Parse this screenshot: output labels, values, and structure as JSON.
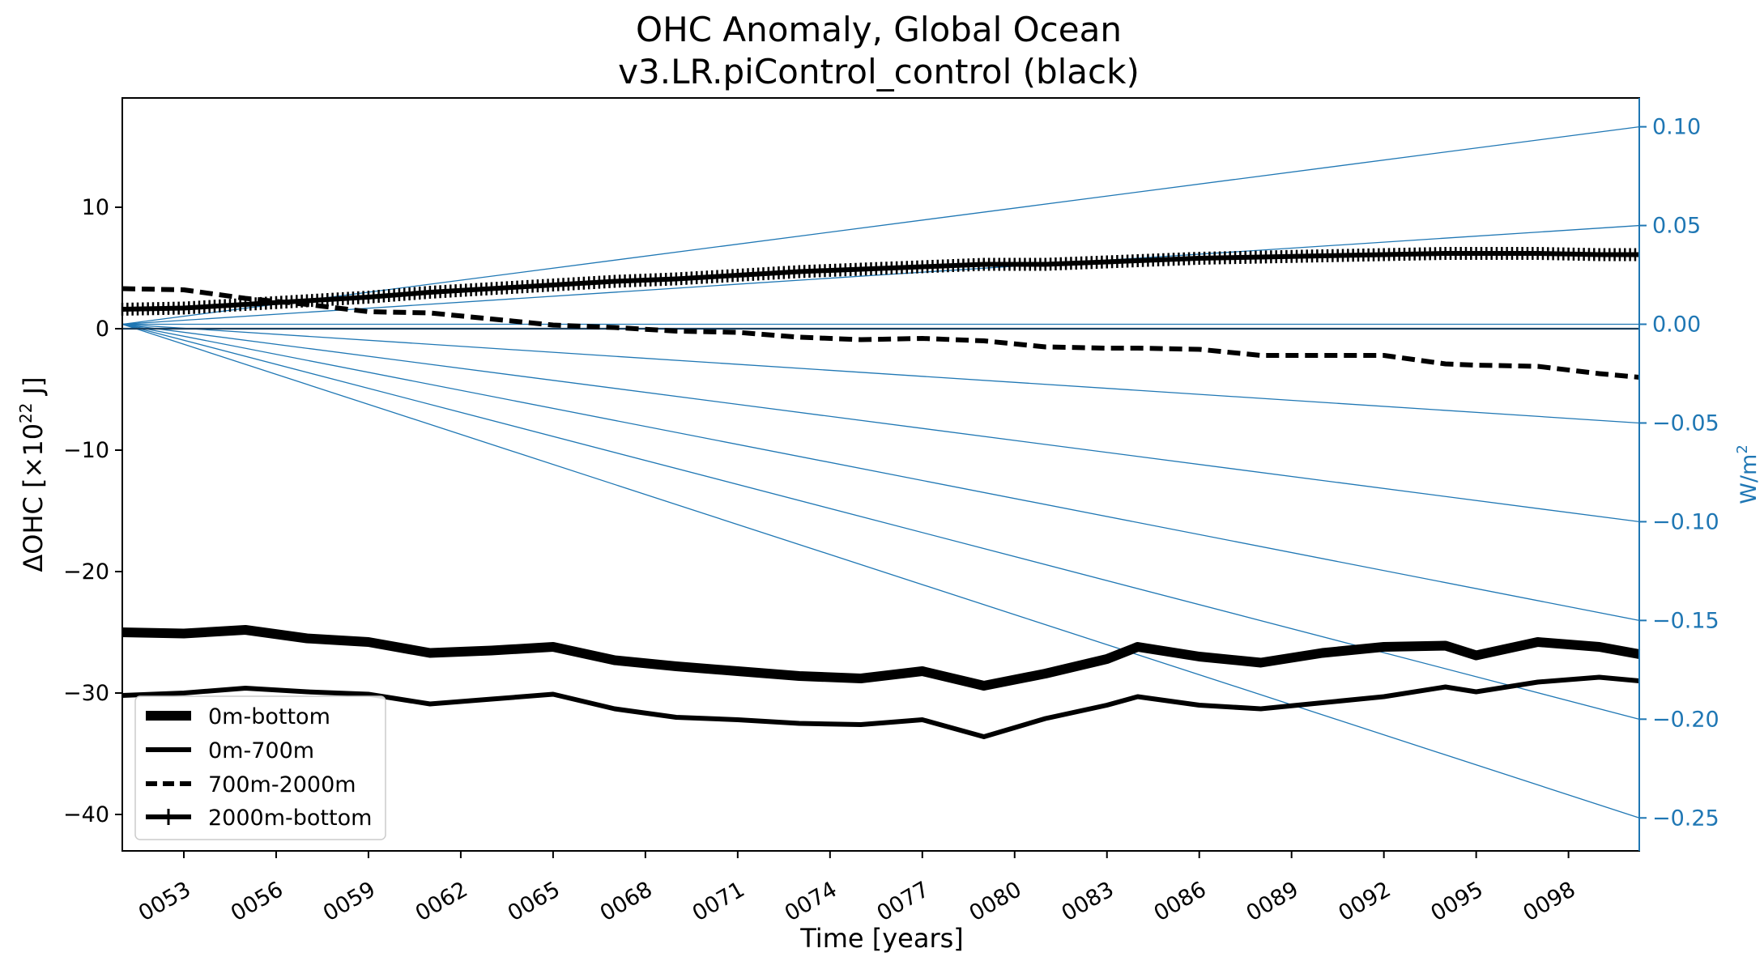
{
  "chart_data": {
    "type": "line",
    "title": [
      "OHC Anomaly, Global Ocean",
      "v3.LR.piControl_control (black)"
    ],
    "xlabel": "Time [years]",
    "ylabel": "ΔOHC [×10",
    "ylabel_sup": "22",
    "ylabel_tail": " J]",
    "y2label": "W/m",
    "y2label_sup": "2",
    "xlim": [
      51.0,
      100.3
    ],
    "ylim": [
      -43,
      19
    ],
    "y2lim": [
      -0.2667,
      0.1146
    ],
    "xticks": [
      53,
      56,
      59,
      62,
      65,
      68,
      71,
      74,
      77,
      80,
      83,
      86,
      89,
      92,
      95,
      98
    ],
    "xtick_labels": [
      "0053",
      "0056",
      "0059",
      "0062",
      "0065",
      "0068",
      "0071",
      "0074",
      "0077",
      "0080",
      "0083",
      "0086",
      "0089",
      "0092",
      "0095",
      "0098"
    ],
    "yticks": [
      10,
      0,
      -10,
      -20,
      -30,
      -40
    ],
    "ytick_labels": [
      "10",
      "0",
      "−10",
      "−20",
      "−30",
      "−40"
    ],
    "y2ticks": [
      0.1,
      0.05,
      0.0,
      -0.05,
      -0.1,
      -0.15,
      -0.2,
      -0.25
    ],
    "y2tick_labels": [
      "0.10",
      "0.05",
      "0.00",
      "−0.05",
      "−0.10",
      "−0.15",
      "−0.20",
      "−0.25"
    ],
    "reference_fluxes_wm2": [
      0.1,
      0.05,
      0.0,
      -0.05,
      -0.1,
      -0.15,
      -0.2,
      -0.25
    ],
    "grid": false,
    "legend_position": "lower-left",
    "colors": {
      "series": "#000000",
      "secondary_axis": "#1f77b4"
    },
    "x": [
      51,
      53,
      55,
      57,
      59,
      61,
      63,
      65,
      67,
      69,
      71,
      73,
      75,
      77,
      79,
      81,
      83,
      84,
      86,
      88,
      90,
      92,
      94,
      95,
      97,
      99,
      100.3
    ],
    "series": [
      {
        "name": "0m-bottom",
        "style": "solid-thick",
        "values": [
          -25.0,
          -25.1,
          -24.8,
          -25.5,
          -25.8,
          -26.7,
          -26.5,
          -26.2,
          -27.3,
          -27.8,
          -28.2,
          -28.6,
          -28.8,
          -28.2,
          -29.4,
          -28.4,
          -27.2,
          -26.2,
          -27.0,
          -27.5,
          -26.7,
          -26.2,
          -26.1,
          -26.9,
          -25.8,
          -26.2,
          -26.8
        ]
      },
      {
        "name": "0m-700m",
        "style": "solid",
        "values": [
          -30.2,
          -30.0,
          -29.6,
          -29.9,
          -30.1,
          -30.9,
          -30.5,
          -30.1,
          -31.3,
          -32.0,
          -32.2,
          -32.5,
          -32.6,
          -32.2,
          -33.6,
          -32.1,
          -31.0,
          -30.3,
          -31.0,
          -31.3,
          -30.8,
          -30.3,
          -29.5,
          -29.9,
          -29.1,
          -28.7,
          -29.0
        ]
      },
      {
        "name": "700m-2000m",
        "style": "dashed",
        "values": [
          3.3,
          3.2,
          2.5,
          2.0,
          1.4,
          1.3,
          0.8,
          0.3,
          0.1,
          -0.2,
          -0.3,
          -0.7,
          -0.9,
          -0.8,
          -1.0,
          -1.5,
          -1.6,
          -1.6,
          -1.7,
          -2.2,
          -2.2,
          -2.2,
          -2.9,
          -3.0,
          -3.1,
          -3.7,
          -4.0
        ]
      },
      {
        "name": "2000m-bottom",
        "style": "solid-plus",
        "values": [
          1.6,
          1.7,
          2.0,
          2.3,
          2.6,
          3.0,
          3.3,
          3.6,
          3.9,
          4.1,
          4.4,
          4.7,
          4.9,
          5.1,
          5.3,
          5.3,
          5.5,
          5.6,
          5.8,
          5.9,
          6.0,
          6.1,
          6.2,
          6.2,
          6.2,
          6.1,
          6.1
        ]
      }
    ]
  }
}
